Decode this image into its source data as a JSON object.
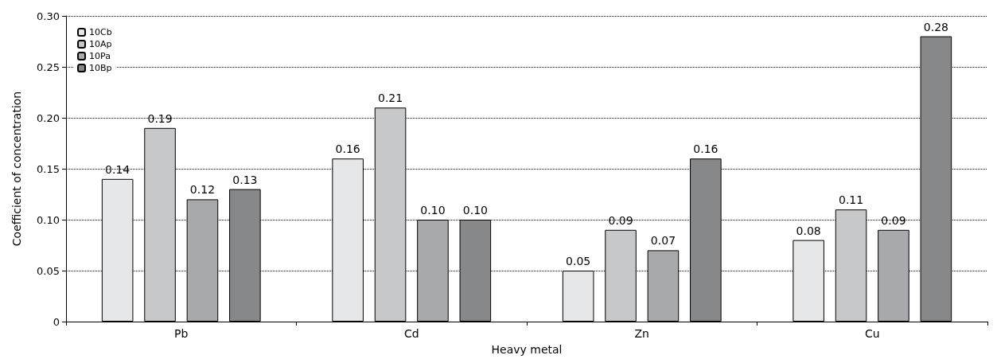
{
  "chart_data": {
    "type": "bar",
    "xlabel": "Heavy metal",
    "ylabel": "Coefficient of concentration",
    "categories": [
      "Pb",
      "Cd",
      "Zn",
      "Cu"
    ],
    "series": [
      {
        "name": "10Cb",
        "color": "#e6e7e8",
        "values": [
          0.14,
          0.16,
          0.05,
          0.08
        ],
        "value_labels": [
          "0.14",
          "0.16",
          "0.05",
          "0.08"
        ]
      },
      {
        "name": "10Ap",
        "color": "#c7c8ca",
        "values": [
          0.19,
          0.21,
          0.09,
          0.11
        ],
        "value_labels": [
          "0.19",
          "0.21",
          "0.09",
          "0.11"
        ]
      },
      {
        "name": "10Pa",
        "color": "#a7a9ac",
        "values": [
          0.12,
          0.1,
          0.07,
          0.09
        ],
        "value_labels": [
          "0.12",
          "0.10",
          "0.07",
          "0.09"
        ]
      },
      {
        "name": "10Bp",
        "color": "#87888a",
        "values": [
          0.13,
          0.1,
          0.16,
          0.28
        ],
        "value_labels": [
          "0.13",
          "0.10",
          "0.16",
          "0.28"
        ]
      }
    ],
    "ylim": [
      0,
      0.3
    ],
    "yticks": [
      0,
      0.05,
      {
        "value": 0.1,
        "label": "0.10"
      },
      0.15,
      {
        "value": 0.2,
        "label": "0.20"
      },
      0.25,
      {
        "value": 0.3,
        "label": "0.30"
      }
    ],
    "grid": "y",
    "legend": "top left"
  }
}
